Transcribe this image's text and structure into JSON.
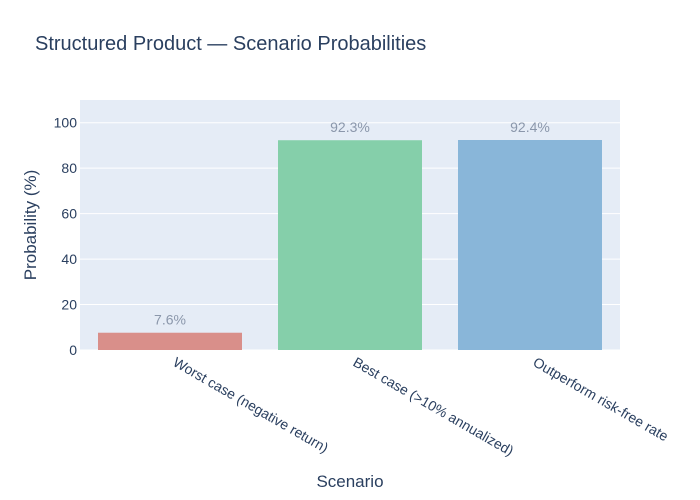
{
  "chart_data": {
    "type": "bar",
    "title": "Structured Product — Scenario Probabilities",
    "xlabel": "Scenario",
    "ylabel": "Probability (%)",
    "ylim": [
      0,
      110
    ],
    "yticks": [
      0,
      20,
      40,
      60,
      80,
      100
    ],
    "grid": true,
    "categories": [
      "Worst case (negative return)",
      "Best case (>10% annualized)",
      "Outperform risk-free rate"
    ],
    "values": [
      7.6,
      92.3,
      92.4
    ],
    "data_labels": [
      "7.6%",
      "92.3%",
      "92.4%"
    ],
    "colors": [
      "#d98f8a",
      "#85cfaa",
      "#89b6d9"
    ],
    "plot_background": "#e5ecf6"
  }
}
